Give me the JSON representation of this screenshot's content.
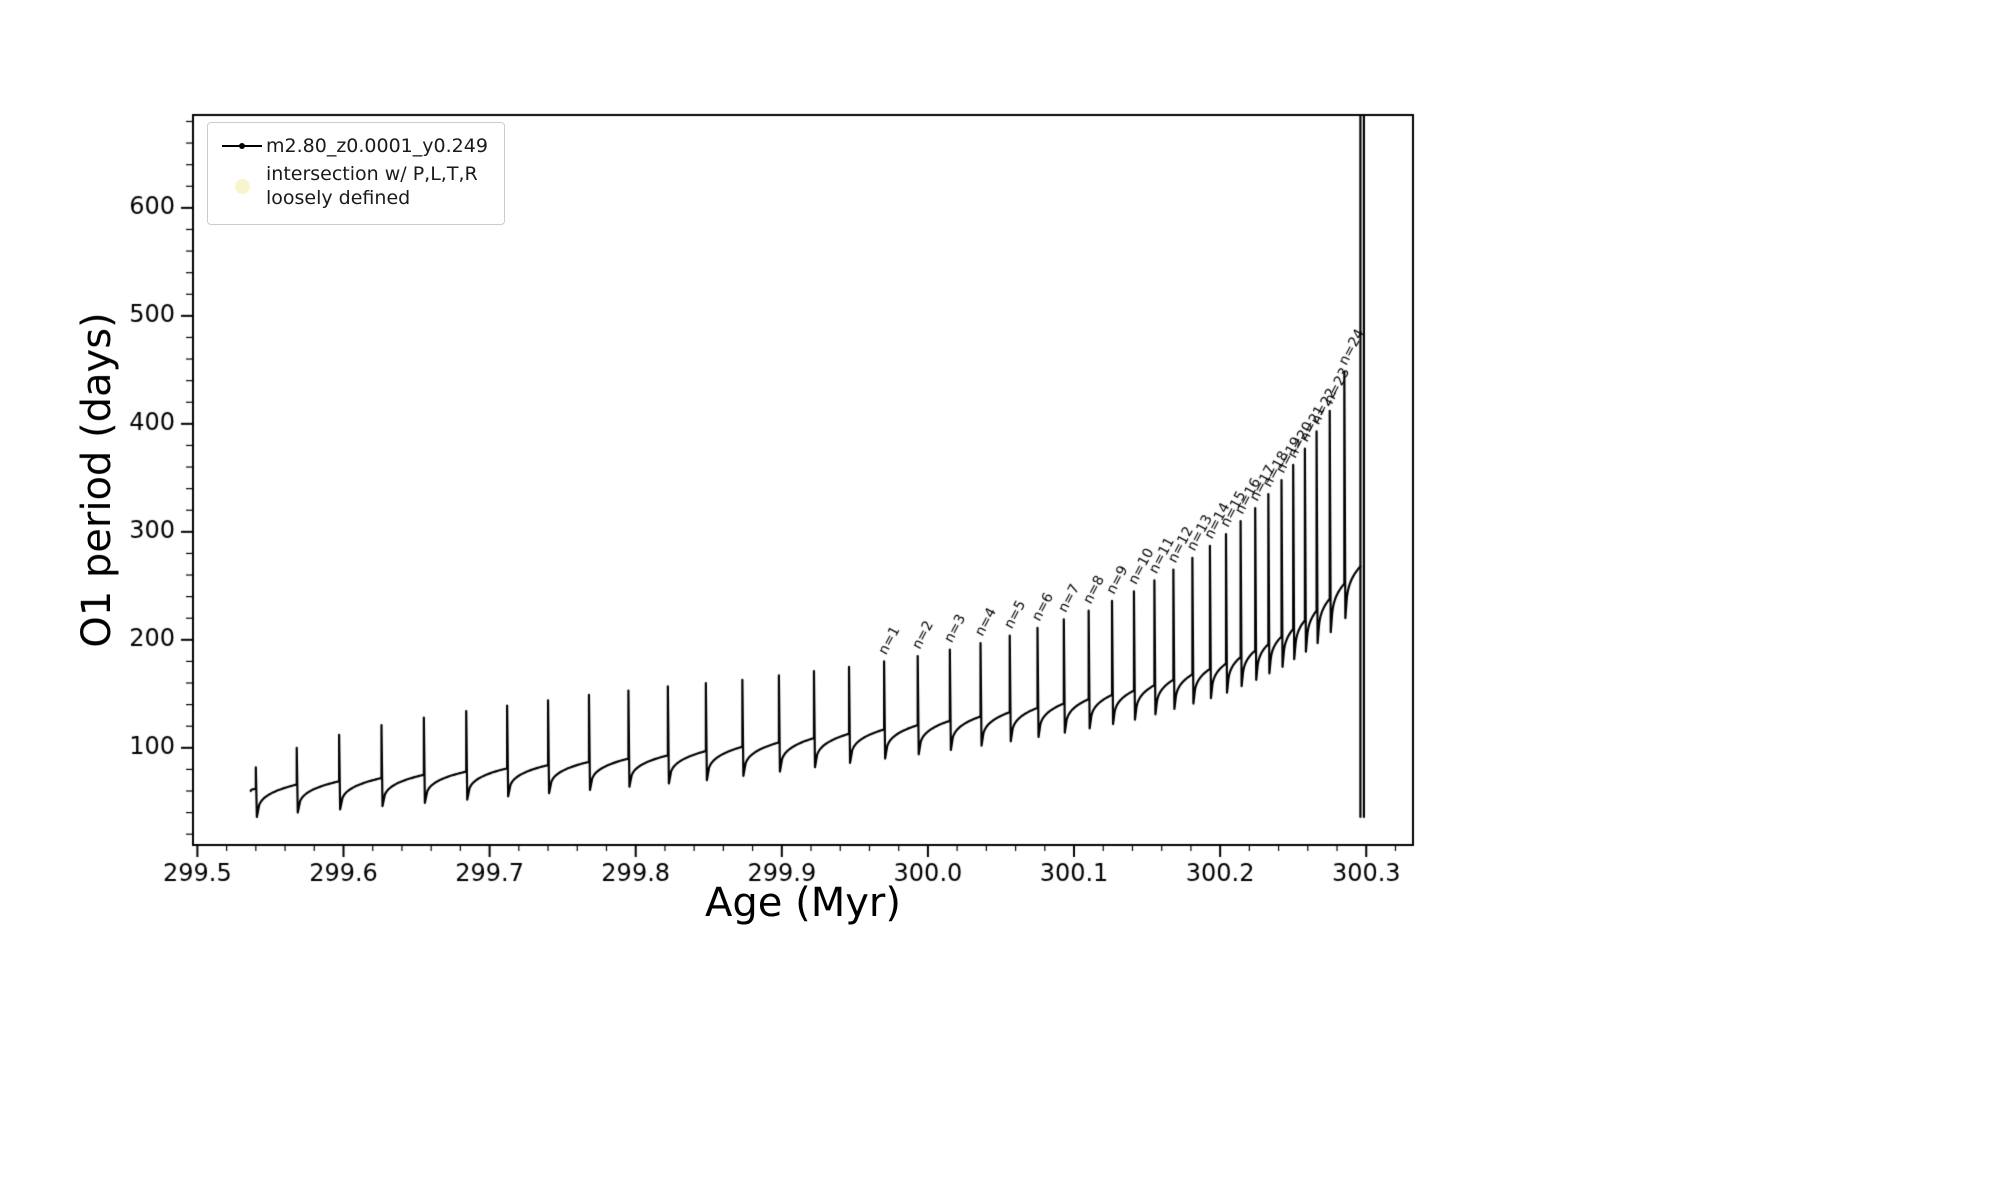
{
  "figure": {
    "background": "#ffffff",
    "frame_color": "#000000"
  },
  "chart_data": {
    "type": "line",
    "title": "",
    "xlabel": "Age (Myr)",
    "ylabel": "O1 period (days)",
    "xlim": [
      299.497,
      300.332
    ],
    "ylim": [
      10,
      686
    ],
    "xtick_values": [
      299.5,
      299.6,
      299.7,
      299.8,
      299.9,
      300.0,
      300.1,
      300.2,
      300.3
    ],
    "xtick_labels": [
      "299.5",
      "299.6",
      "299.7",
      "299.8",
      "299.9",
      "300.0",
      "300.1",
      "300.2",
      "300.3"
    ],
    "ytick_values": [
      100,
      200,
      300,
      400,
      500,
      600
    ],
    "ytick_labels": [
      "100",
      "200",
      "300",
      "400",
      "500",
      "600"
    ],
    "x_minor_step": 0.02,
    "y_minor_step": 20,
    "grid": false,
    "line_color": "#000000",
    "legend": {
      "position": "upper left",
      "series1_label": "m2.80_z0.0001_y0.249",
      "series2_label": "intersection w/ P,L,T,R\nloosely defined",
      "series2_marker_color": "#f7f2c4"
    },
    "annotation_rotation_deg": -62,
    "annotation_color": "#000000",
    "start_point": {
      "age": 299.5365,
      "period": 60
    },
    "pulse_fields": [
      "age",
      "base_period",
      "peak_period",
      "post_dip_period",
      "label"
    ],
    "pulses": [
      [
        299.54,
        62,
        82,
        36,
        ""
      ],
      [
        299.568,
        66,
        100,
        40,
        ""
      ],
      [
        299.597,
        69,
        112,
        43,
        ""
      ],
      [
        299.626,
        72,
        121,
        46,
        ""
      ],
      [
        299.655,
        75,
        128,
        49,
        ""
      ],
      [
        299.684,
        78,
        134,
        52,
        ""
      ],
      [
        299.712,
        81,
        139,
        55,
        ""
      ],
      [
        299.74,
        84,
        144,
        58,
        ""
      ],
      [
        299.768,
        87,
        149,
        61,
        ""
      ],
      [
        299.795,
        90,
        153,
        64,
        ""
      ],
      [
        299.822,
        93,
        157,
        67,
        ""
      ],
      [
        299.848,
        97,
        160,
        70,
        ""
      ],
      [
        299.873,
        101,
        163,
        74,
        ""
      ],
      [
        299.898,
        105,
        167,
        78,
        ""
      ],
      [
        299.922,
        109,
        171,
        82,
        ""
      ],
      [
        299.946,
        113,
        175,
        86,
        ""
      ],
      [
        299.97,
        117,
        180,
        90,
        "n=1"
      ],
      [
        299.993,
        121,
        185,
        94,
        "n=2"
      ],
      [
        300.015,
        125,
        191,
        98,
        "n=3"
      ],
      [
        300.036,
        129,
        197,
        102,
        "n=4"
      ],
      [
        300.056,
        133,
        204,
        106,
        "n=5"
      ],
      [
        300.075,
        137,
        211,
        110,
        "n=6"
      ],
      [
        300.093,
        141,
        219,
        114,
        "n=7"
      ],
      [
        300.11,
        145,
        227,
        118,
        "n=8"
      ],
      [
        300.126,
        149,
        236,
        122,
        "n=9"
      ],
      [
        300.141,
        153,
        245,
        126,
        "n=10"
      ],
      [
        300.155,
        158,
        255,
        131,
        "n=11"
      ],
      [
        300.168,
        163,
        265,
        136,
        "n=12"
      ],
      [
        300.181,
        168,
        276,
        141,
        "n=13"
      ],
      [
        300.193,
        173,
        287,
        146,
        "n=14"
      ],
      [
        300.204,
        178,
        298,
        151,
        "n=15"
      ],
      [
        300.214,
        184,
        310,
        157,
        "n=16"
      ],
      [
        300.224,
        190,
        322,
        163,
        "n=17"
      ],
      [
        300.233,
        196,
        335,
        169,
        "n=18"
      ],
      [
        300.242,
        203,
        348,
        175,
        "n=19"
      ],
      [
        300.25,
        210,
        362,
        182,
        "n=20"
      ],
      [
        300.258,
        218,
        377,
        189,
        "n=21"
      ],
      [
        300.266,
        227,
        393,
        197,
        "n=22"
      ],
      [
        300.275,
        238,
        412,
        207,
        "n=23"
      ],
      [
        300.285,
        252,
        448,
        220,
        "n=24"
      ]
    ],
    "final_spike": {
      "age": 300.296,
      "base_period": 268,
      "top": 686,
      "bottom": 36
    }
  }
}
